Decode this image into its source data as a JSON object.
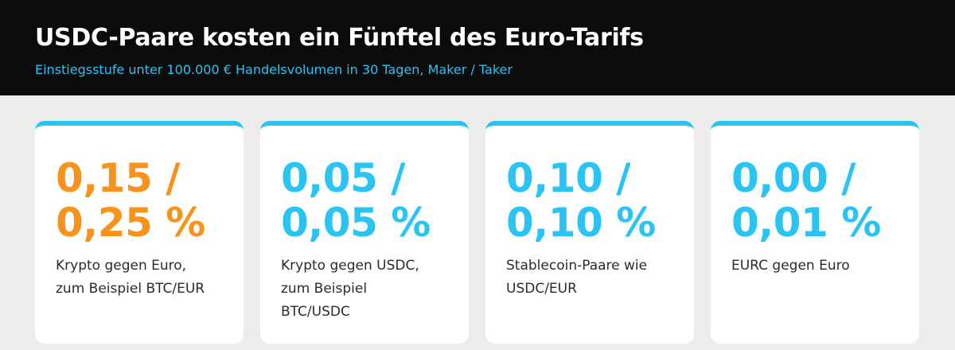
{
  "header": {
    "title": "USDC-Paare kosten ein Fünftel des Euro-Tarifs",
    "subtitle": "Einstiegsstufe unter 100.000 € Handelsvolumen in 30 Tagen, Maker / Taker"
  },
  "cards": [
    {
      "value_lines": [
        "0,15 /",
        "0,25 %"
      ],
      "description_lines": [
        "Krypto gegen Euro,",
        "zum Beispiel BTC/EUR"
      ],
      "color": "#f7931a"
    },
    {
      "value_lines": [
        "0,05 /",
        "0,05 %"
      ],
      "description_lines": [
        "Krypto gegen USDC,",
        "zum Beispiel",
        "BTC/USDC"
      ],
      "color": "#29c3f4"
    },
    {
      "value_lines": [
        "0,10 /",
        "0,10 %"
      ],
      "description_lines": [
        "Stablecoin-Paare wie",
        "USDC/EUR"
      ],
      "color": "#29c3f4"
    },
    {
      "value_lines": [
        "0,00 /",
        "0,01 %"
      ],
      "description_lines": [
        "EURC gegen Euro"
      ],
      "color": "#29c3f4"
    }
  ]
}
